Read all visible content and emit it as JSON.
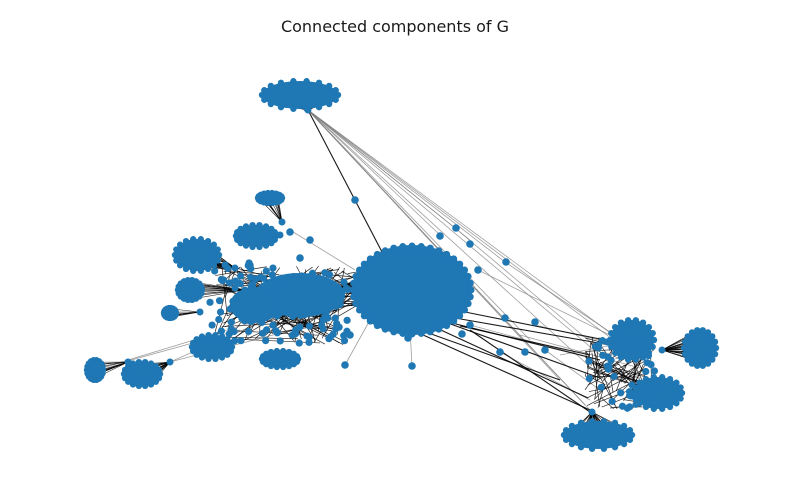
{
  "figure": {
    "title": "Connected components of G"
  },
  "colors": {
    "node": "#1f77b4",
    "edge_dark": "#000000",
    "edge_light": "#7f7f7f",
    "background": "#ffffff"
  }
}
